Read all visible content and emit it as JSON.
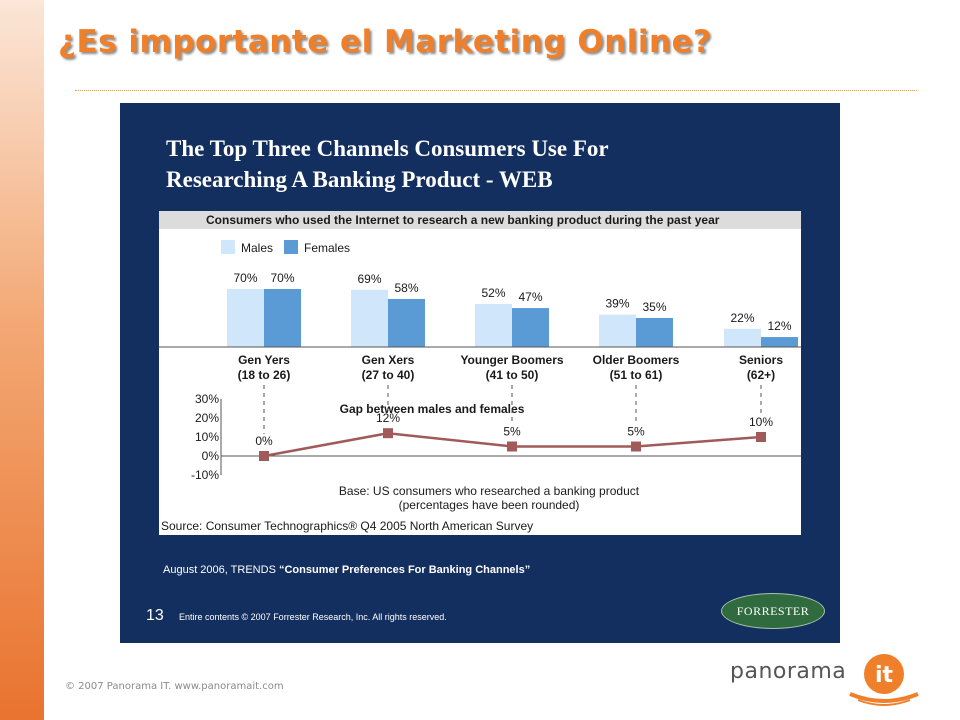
{
  "slide": {
    "title": "¿Es importante el Marketing Online?",
    "footer": "© 2007 Panorama IT. www.panoramait.com",
    "brand": "panorama",
    "brand_mark": "it"
  },
  "panel": {
    "heading_line1": "The Top Three Channels Consumers Use For",
    "heading_line2": "Researching A Banking Product - WEB",
    "credit_prefix": "August 2006, TRENDS ",
    "credit_report": "“Consumer Preferences For Banking Channels”",
    "page_number": "13",
    "copyright": "Entire contents © 2007 Forrester Research, Inc. All rights reserved.",
    "logo": "FORRESTER"
  },
  "chart_data": [
    {
      "type": "bar",
      "title": "Consumers who used the Internet to research a new banking product during the past year",
      "categories": [
        "Gen Yers",
        "Gen Xers",
        "Younger Boomers",
        "Older Boomers",
        "Seniors"
      ],
      "category_sublabels": [
        "(18 to 26)",
        "(27 to 40)",
        "(41 to 50)",
        "(51 to 61)",
        "(62+)"
      ],
      "series": [
        {
          "name": "Males",
          "color": "#cfe6fb",
          "values": [
            70,
            69,
            52,
            39,
            22
          ]
        },
        {
          "name": "Females",
          "color": "#5b9bd5",
          "values": [
            70,
            58,
            47,
            35,
            12
          ]
        }
      ],
      "value_labels": [
        [
          "70%",
          "69%",
          "52%",
          "39%",
          "22%"
        ],
        [
          "70%",
          "58%",
          "47%",
          "35%",
          "12%"
        ]
      ],
      "legend": "top-left",
      "ylim": [
        0,
        70
      ]
    },
    {
      "type": "line",
      "title": "Gap between males and females",
      "categories": [
        "Gen Yers",
        "Gen Xers",
        "Younger Boomers",
        "Older Boomers",
        "Seniors"
      ],
      "values": [
        0,
        12,
        5,
        5,
        10
      ],
      "value_labels": [
        "0%",
        "12%",
        "5%",
        "5%",
        "10%"
      ],
      "yticks": [
        "30%",
        "20%",
        "10%",
        "0%",
        "-10%"
      ],
      "ylim": [
        -10,
        30
      ],
      "line_color": "#a05a5a",
      "base_line1": "Base: US consumers who researched a banking product",
      "base_line2": "(percentages have been rounded)",
      "source": "Source: Consumer Technographics® Q4 2005 North American Survey"
    }
  ]
}
